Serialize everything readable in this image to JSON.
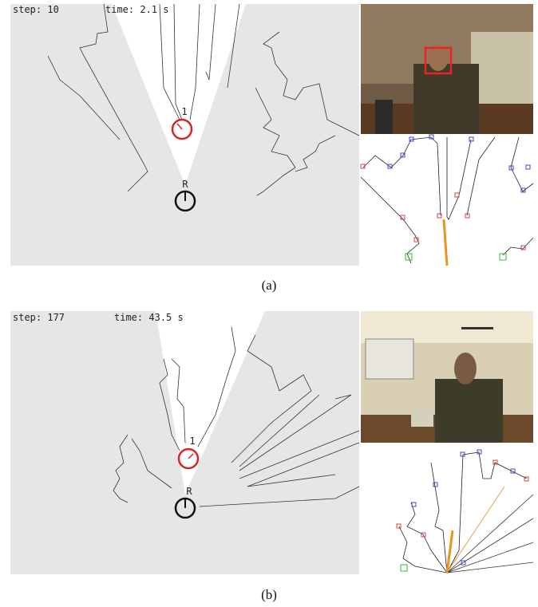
{
  "panels": [
    {
      "step": "step: 10",
      "time": "time: 2.1 s",
      "target_label": "1",
      "robot_label": "R",
      "caption": "(a)"
    },
    {
      "step": "step: 177",
      "time": "time: 43.5 s",
      "target_label": "1",
      "robot_label": "R",
      "caption": "(b)"
    }
  ]
}
